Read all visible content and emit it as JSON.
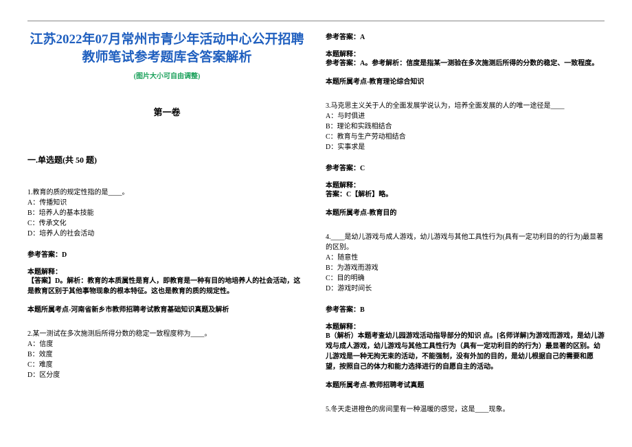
{
  "header": {
    "title_line": "江苏2022年07月常州市青少年活动中心公开招聘教师笔试参考题库含答案解析",
    "subtitle": "(图片大小可自由调整)",
    "volume": "第一卷",
    "section": "一.单选题(共 50 题)"
  },
  "q1": {
    "stem": "1.教育的质的规定性指的是____。",
    "a": "A：传播知识",
    "b": "B：培养人的基本技能",
    "c": "C：传承文化",
    "d": "D：培养人的社会活动",
    "ans": "参考答案：D",
    "expl_h": "本题解释：",
    "expl": "【答案】D。解析：教育的本质属性是育人，即教育是一种有目的地培养人的社会活动，这是教育区别于其他事物现象的根本特征。这也是教育的质的规定性。",
    "kp": "本题所属考点-河南省新乡市教师招聘考试教育基础知识真题及解析"
  },
  "q2": {
    "stem": "2.某一测试在多次施测后所得分数的稳定一致程度称为____。",
    "a": "A：信度",
    "b": "B：效度",
    "c": "C：难度",
    "d": "D：区分度",
    "ans": "参考答案：A",
    "expl_h": "本题解释：",
    "expl": "参考答案：A。参考解析：信度是指某一测验在多次施测后所得的分数的稳定、一致程度。",
    "kp": "本题所属考点-教育理论综合知识"
  },
  "q3": {
    "stem": "3.马克思主义关于人的全面发展学说认为，培养全面发展的人的唯一途径是____",
    "a": "A：与时俱进",
    "b": "B：理论和实践相结合",
    "c": "C：教育与生产劳动相结合",
    "d": "D：实事求是",
    "ans": "参考答案：C",
    "expl_h": "本题解释：",
    "expl": "答案：C【解析】略。",
    "kp": "本题所属考点-教育目的"
  },
  "q4": {
    "stem": "4.____是幼儿游戏与成人游戏，幼儿游戏与其他工具性行为(具有一定功利目的的行为)最显著的区别。",
    "a": "A：随意性",
    "b": "B：为游戏而游戏",
    "c": "C：目的明确",
    "d": "D：游戏时间长",
    "ans": "参考答案：B",
    "expl_h": "本题解释：",
    "expl": "B（解析）本题考查幼儿园游戏活动指导部分的知识 点。[名师详解]为游戏而游戏，是幼儿游戏与成人游戏，幼儿游戏与其他工具性行为（具有一定功利目的的行为）最显著的区别。幼儿游戏是一种无拘无束的活动，不能强制，没有外加的目的，是幼儿根据自己的需要和愿望，按照自己的体力和能力选择进行的自愿自主的活动。",
    "kp": "本题所属考点-教师招聘考试真题"
  },
  "q5": {
    "stem": "5.冬天走进橙色的房间里有一种温暖的感觉，这是____现象。"
  },
  "colors": {
    "title": "#1f5fbf",
    "subtitle": "#1aa05a",
    "text": "#000000",
    "rule": "#888888",
    "background": "#ffffff"
  }
}
